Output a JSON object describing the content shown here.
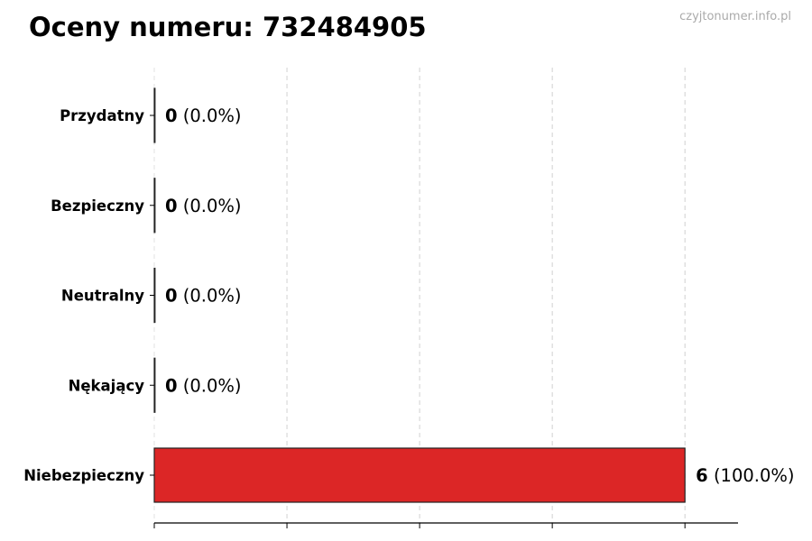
{
  "watermark": "czyjtonumer.info.pl",
  "chart_data": {
    "type": "bar",
    "orientation": "horizontal",
    "title": "Oceny numeru: 732484905",
    "categories": [
      "Przydatny",
      "Bezpieczny",
      "Neutralny",
      "Nękający",
      "Niebezpieczny"
    ],
    "values": [
      0,
      0,
      0,
      0,
      6
    ],
    "value_labels": [
      "0",
      "0",
      "0",
      "0",
      "6"
    ],
    "percent_labels": [
      "(0.0%)",
      "(0.0%)",
      "(0.0%)",
      "(0.0%)",
      "(100.0%)"
    ],
    "colors": [
      "#2ca02c",
      "#4caf50",
      "#9e9e9e",
      "#ff9800",
      "#dc2626"
    ],
    "xlim": [
      0,
      6.6
    ],
    "xticks": [
      0,
      1.5,
      3,
      4.5,
      6
    ],
    "xtick_labels_shown": false,
    "grid": "x, dashed",
    "xlabel": "",
    "ylabel": ""
  }
}
